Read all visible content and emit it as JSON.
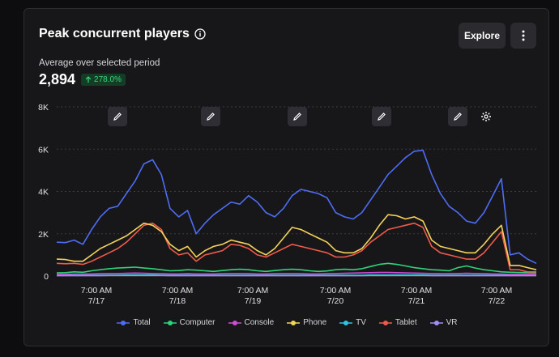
{
  "card": {
    "title": "Peak concurrent players",
    "explore_label": "Explore",
    "subtitle": "Average over selected period",
    "value": "2,894",
    "change": "278.0%"
  },
  "colors": {
    "total": "#4e6df5",
    "computer": "#2fd47a",
    "console": "#d24bd8",
    "phone": "#f5d35a",
    "tv": "#2fc5e0",
    "tablet": "#f05a4a",
    "vr": "#a38cf5"
  },
  "chart_data": {
    "type": "line",
    "y_ticks": [
      "8K",
      "6K",
      "4K",
      "2K",
      "0"
    ],
    "ylim": [
      0,
      8000
    ],
    "x_ticks": [
      {
        "time": "7:00 AM",
        "date": "7/17"
      },
      {
        "time": "7:00 AM",
        "date": "7/18"
      },
      {
        "time": "7:00 AM",
        "date": "7/19"
      },
      {
        "time": "7:00 AM",
        "date": "7/20"
      },
      {
        "time": "7:00 AM",
        "date": "7/21"
      },
      {
        "time": "7:00 AM",
        "date": "7/22"
      }
    ],
    "x": [
      0,
      0.4,
      0.8,
      1.2,
      1.6,
      2.0,
      2.4,
      2.8,
      3.2,
      3.6,
      4.0,
      4.4,
      4.8,
      5.2,
      5.6,
      6.0,
      6.4,
      6.8,
      7.2,
      7.6,
      8.0,
      8.4,
      8.8,
      9.2,
      9.6,
      10.0,
      10.4,
      10.8,
      11.2,
      11.6,
      12.0,
      12.4,
      12.8,
      13.2,
      13.6,
      14.0,
      14.4,
      14.8,
      15.2,
      15.6,
      16.0,
      16.4,
      16.8,
      17.2,
      17.6,
      18.0,
      18.4,
      18.8,
      19.2,
      19.6,
      20.0,
      20.4,
      20.8,
      21.2,
      21.6,
      22.0
    ],
    "series": [
      {
        "name": "Total",
        "color_key": "total",
        "values": [
          1600,
          1580,
          1700,
          1500,
          2200,
          2800,
          3200,
          3300,
          3900,
          4500,
          5300,
          5500,
          4800,
          3200,
          2800,
          3100,
          2000,
          2500,
          2900,
          3200,
          3500,
          3400,
          3800,
          3500,
          3000,
          2800,
          3200,
          3800,
          4100,
          4000,
          3900,
          3700,
          3000,
          2800,
          2700,
          3000,
          3600,
          4200,
          4800,
          5200,
          5600,
          5900,
          5950,
          4800,
          3900,
          3300,
          3000,
          2600,
          2500,
          3000,
          3800,
          4600,
          1000,
          1100,
          800,
          600
        ]
      },
      {
        "name": "Computer",
        "color_key": "computer",
        "values": [
          150,
          160,
          200,
          180,
          250,
          300,
          350,
          380,
          400,
          420,
          380,
          350,
          300,
          250,
          260,
          300,
          280,
          250,
          220,
          260,
          300,
          320,
          300,
          250,
          220,
          260,
          300,
          320,
          300,
          250,
          220,
          240,
          300,
          320,
          300,
          350,
          450,
          550,
          600,
          550,
          480,
          400,
          350,
          300,
          280,
          250,
          400,
          480,
          380,
          300,
          250,
          200,
          180,
          170,
          160,
          150
        ]
      },
      {
        "name": "Console",
        "color_key": "console",
        "values": [
          80,
          80,
          90,
          90,
          100,
          110,
          120,
          120,
          130,
          140,
          130,
          120,
          110,
          100,
          100,
          110,
          100,
          100,
          100,
          110,
          120,
          120,
          110,
          100,
          100,
          110,
          120,
          120,
          110,
          100,
          100,
          110,
          120,
          130,
          140,
          150,
          160,
          170,
          170,
          160,
          150,
          140,
          130,
          120,
          110,
          110,
          120,
          130,
          120,
          110,
          100,
          90,
          80,
          80,
          80,
          80
        ]
      },
      {
        "name": "Phone",
        "color_key": "phone",
        "values": [
          800,
          780,
          700,
          700,
          1000,
          1300,
          1500,
          1700,
          1900,
          2200,
          2500,
          2400,
          2100,
          1500,
          1200,
          1400,
          900,
          1200,
          1400,
          1500,
          1700,
          1600,
          1500,
          1200,
          1000,
          1300,
          1800,
          2300,
          2200,
          2000,
          1800,
          1600,
          1200,
          1100,
          1100,
          1300,
          1800,
          2400,
          2900,
          2850,
          2700,
          2800,
          2600,
          1700,
          1400,
          1300,
          1200,
          1100,
          1100,
          1500,
          2000,
          2400,
          500,
          500,
          400,
          300
        ]
      },
      {
        "name": "TV",
        "color_key": "tv",
        "values": [
          30,
          30,
          30,
          30,
          40,
          40,
          40,
          40,
          50,
          50,
          50,
          50,
          40,
          40,
          40,
          40,
          40,
          40,
          40,
          40,
          40,
          40,
          40,
          40,
          40,
          40,
          40,
          40,
          40,
          40,
          40,
          40,
          40,
          40,
          40,
          40,
          50,
          50,
          50,
          50,
          50,
          50,
          50,
          40,
          40,
          40,
          40,
          40,
          40,
          40,
          40,
          40,
          30,
          30,
          30,
          30
        ]
      },
      {
        "name": "Tablet",
        "color_key": "tablet",
        "values": [
          600,
          580,
          600,
          550,
          700,
          900,
          1100,
          1300,
          1600,
          2000,
          2400,
          2500,
          2200,
          1300,
          1000,
          1100,
          700,
          1000,
          1100,
          1200,
          1500,
          1450,
          1300,
          1000,
          900,
          1100,
          1300,
          1500,
          1400,
          1300,
          1200,
          1100,
          900,
          900,
          1000,
          1200,
          1600,
          1900,
          2200,
          2300,
          2400,
          2500,
          2300,
          1400,
          1100,
          1000,
          900,
          800,
          800,
          1100,
          1600,
          2100,
          300,
          300,
          200,
          200
        ]
      },
      {
        "name": "VR",
        "color_key": "vr",
        "values": [
          20,
          20,
          20,
          20,
          20,
          20,
          30,
          30,
          30,
          30,
          30,
          30,
          30,
          20,
          20,
          20,
          20,
          20,
          20,
          20,
          20,
          20,
          20,
          20,
          20,
          20,
          20,
          20,
          20,
          20,
          20,
          20,
          20,
          20,
          20,
          20,
          30,
          30,
          30,
          30,
          30,
          30,
          30,
          20,
          20,
          20,
          20,
          20,
          20,
          20,
          20,
          20,
          20,
          20,
          20,
          20
        ]
      }
    ]
  }
}
